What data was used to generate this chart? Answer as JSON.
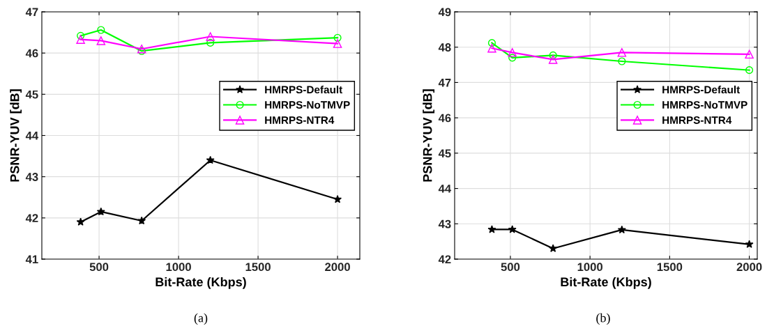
{
  "chart_data": [
    {
      "type": "line",
      "xlabel": "Bit-Rate (Kbps)",
      "ylabel": "PSNR-YUV [dB]",
      "x": [
        384,
        512,
        768,
        1200,
        2000
      ],
      "xlim": [
        140,
        2140
      ],
      "xticks": [
        500,
        1000,
        1500,
        2000
      ],
      "ylim": [
        41,
        47
      ],
      "yticks": [
        41,
        42,
        43,
        44,
        45,
        46,
        47
      ],
      "grid": true,
      "legend": "right",
      "annotations": [
        "(a)"
      ],
      "series": [
        {
          "name": "HMRPS-Default",
          "color": "#000000",
          "marker": "star",
          "values": [
            41.9,
            42.15,
            41.93,
            43.4,
            42.45
          ]
        },
        {
          "name": "HMRPS-NoTMVP",
          "color": "#00ff00",
          "marker": "circle",
          "values": [
            46.42,
            46.56,
            46.05,
            46.25,
            46.37
          ]
        },
        {
          "name": "HMRPS-NTR4",
          "color": "#ff00ff",
          "marker": "triangle",
          "values": [
            46.33,
            46.3,
            46.1,
            46.4,
            46.23
          ]
        }
      ]
    },
    {
      "type": "line",
      "xlabel": "Bit-Rate (Kbps)",
      "ylabel": "PSNR-YUV [dB]",
      "x": [
        384,
        512,
        768,
        1200,
        2000
      ],
      "xlim": [
        150,
        2050
      ],
      "xticks": [
        500,
        1000,
        1500,
        2000
      ],
      "ylim": [
        42,
        49
      ],
      "yticks": [
        42,
        43,
        44,
        45,
        46,
        47,
        48,
        49
      ],
      "grid": true,
      "legend": "right",
      "annotations": [
        "(b)"
      ],
      "series": [
        {
          "name": "HMRPS-Default",
          "color": "#000000",
          "marker": "star",
          "values": [
            42.84,
            42.84,
            42.3,
            42.83,
            42.42
          ]
        },
        {
          "name": "HMRPS-NoTMVP",
          "color": "#00ff00",
          "marker": "circle",
          "values": [
            48.12,
            47.7,
            47.77,
            47.6,
            47.35
          ]
        },
        {
          "name": "HMRPS-NTR4",
          "color": "#ff00ff",
          "marker": "triangle",
          "values": [
            47.97,
            47.85,
            47.65,
            47.85,
            47.8
          ]
        }
      ]
    }
  ]
}
